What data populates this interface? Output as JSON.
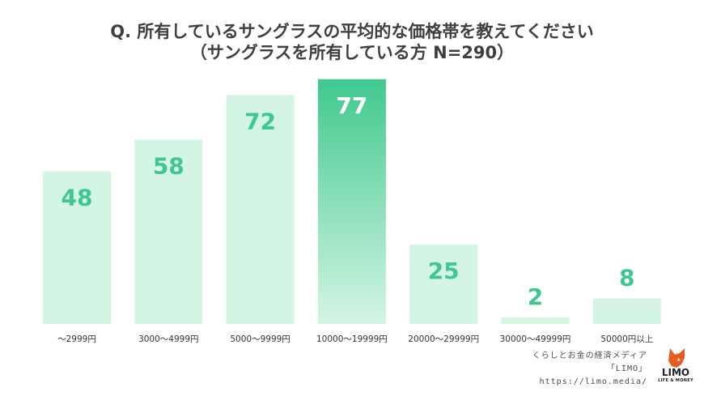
{
  "title": {
    "line1": "Q. 所有しているサングラスの平均的な価格帯を教えてください",
    "line2": "（サングラスを所有している方 N=290）"
  },
  "chart_data": {
    "type": "bar",
    "categories": [
      "〜2999円",
      "3000〜4999円",
      "5000〜9999円",
      "10000〜19999円",
      "20000〜29999円",
      "30000〜49999円",
      "50000円以上"
    ],
    "values": [
      48,
      58,
      72,
      77,
      25,
      2,
      8
    ],
    "highlight_index": 3,
    "ylim": [
      0,
      80
    ],
    "grid": false,
    "legend": "none",
    "colors": {
      "bar": "#d4f5e4",
      "highlight_top": "#40c98e",
      "highlight_bottom": "#d4f5e4",
      "label": "#3fc792",
      "highlight_label": "#ffffff",
      "tick": "#333333"
    }
  },
  "credit": {
    "line1": "くらしとお金の経済メディア",
    "line2": "「LIMO」",
    "line3": "https://limo.media/"
  },
  "logo": {
    "text": "LIMO",
    "sub": "LIFE & MONEY",
    "icon": "fox-icon",
    "color": "#e85a1e"
  }
}
